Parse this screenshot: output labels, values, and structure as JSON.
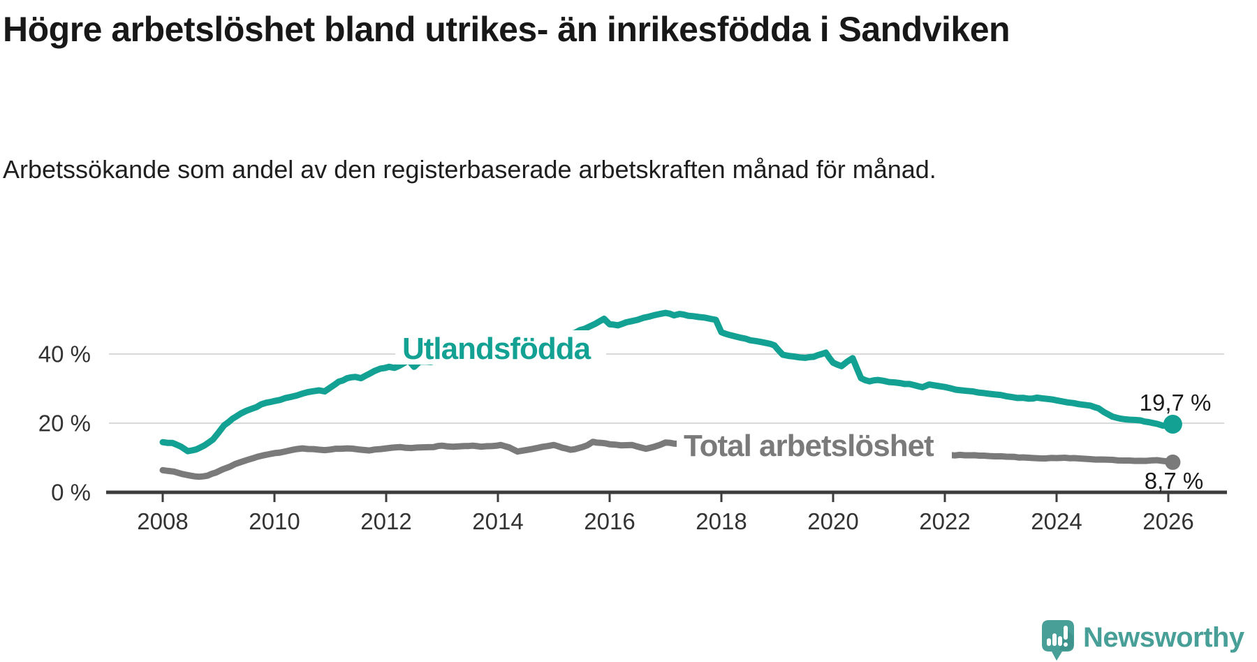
{
  "header": {
    "title": "Högre arbetslöshet bland utrikes- än inrikesfödda i Sandviken",
    "subtitle": "Arbetssökande som andel av den registerbaserade arbetskraften månad för månad."
  },
  "colors": {
    "background": "#ffffff",
    "title_text": "#181818",
    "accent_teal": "#12a192",
    "series_gray": "#7a7a7a",
    "axis_text": "#333333",
    "axis_line": "#3c3c3c",
    "gridline": "#d9d9d9",
    "value_label_text": "#1a1a1a",
    "logo_teal": "#479f97"
  },
  "logo": {
    "text": "Newsworthy",
    "icon": "newsworthy-speech-bubble-bar-chart-icon"
  },
  "chart_data": {
    "type": "line",
    "title": "Högre arbetslöshet bland utrikes- än inrikesfödda i Sandviken",
    "subtitle": "Arbetssökande som andel av den registerbaserade arbetskraften månad för månad.",
    "unit": "%",
    "grid": "horizontal",
    "gridline_values": [
      20,
      40
    ],
    "legend_position": "inline-line-labels",
    "x_ticks": [
      2008,
      2010,
      2012,
      2014,
      2016,
      2018,
      2020,
      2022,
      2024,
      2026
    ],
    "y_ticks": [
      {
        "value": 0,
        "label": "0 %"
      },
      {
        "value": 20,
        "label": "20 %"
      },
      {
        "value": 40,
        "label": "40 %"
      }
    ],
    "xlim": [
      2007.9,
      2026.3
    ],
    "ylim": [
      0,
      55
    ],
    "series": [
      {
        "name": "Utlandsfödda",
        "color": "#12a192",
        "end_value": 19.7,
        "end_label": "19,7 %",
        "points": [
          [
            2008.0,
            14.5
          ],
          [
            2008.17,
            14.3
          ],
          [
            2008.33,
            13.2
          ],
          [
            2008.45,
            11.9
          ],
          [
            2008.6,
            12.4
          ],
          [
            2008.75,
            13.6
          ],
          [
            2008.9,
            15.3
          ],
          [
            2009.0,
            17.3
          ],
          [
            2009.1,
            19.4
          ],
          [
            2009.25,
            21.3
          ],
          [
            2009.4,
            22.8
          ],
          [
            2009.6,
            24.2
          ],
          [
            2009.85,
            25.9
          ],
          [
            2010.0,
            26.4
          ],
          [
            2010.2,
            27.3
          ],
          [
            2010.4,
            28.0
          ],
          [
            2010.6,
            29.0
          ],
          [
            2010.8,
            29.5
          ],
          [
            2010.9,
            29.2
          ],
          [
            2011.0,
            30.3
          ],
          [
            2011.15,
            32.0
          ],
          [
            2011.3,
            33.0
          ],
          [
            2011.45,
            33.4
          ],
          [
            2011.55,
            33.0
          ],
          [
            2011.7,
            34.3
          ],
          [
            2011.9,
            35.8
          ],
          [
            2012.05,
            36.3
          ],
          [
            2012.15,
            36.0
          ],
          [
            2012.3,
            37.2
          ],
          [
            2012.4,
            38.2
          ],
          [
            2012.5,
            36.3
          ],
          [
            2012.6,
            37.8
          ],
          [
            2012.8,
            37.7
          ],
          [
            2013.0,
            38.4
          ],
          [
            2013.2,
            39.0
          ],
          [
            2013.5,
            40.1
          ],
          [
            2013.8,
            40.9
          ],
          [
            2014.1,
            41.8
          ],
          [
            2014.4,
            42.7
          ],
          [
            2014.7,
            43.5
          ],
          [
            2015.0,
            44.6
          ],
          [
            2015.3,
            45.8
          ],
          [
            2015.55,
            47.3
          ],
          [
            2015.75,
            48.8
          ],
          [
            2015.9,
            50.2
          ],
          [
            2016.0,
            48.6
          ],
          [
            2016.15,
            48.3
          ],
          [
            2016.3,
            49.2
          ],
          [
            2016.5,
            49.9
          ],
          [
            2016.7,
            50.8
          ],
          [
            2016.9,
            51.6
          ],
          [
            2017.0,
            51.9
          ],
          [
            2017.15,
            51.2
          ],
          [
            2017.25,
            51.6
          ],
          [
            2017.4,
            51.1
          ],
          [
            2017.6,
            50.7
          ],
          [
            2017.8,
            50.2
          ],
          [
            2017.9,
            49.9
          ],
          [
            2018.0,
            46.3
          ],
          [
            2018.15,
            45.5
          ],
          [
            2018.35,
            44.7
          ],
          [
            2018.6,
            43.8
          ],
          [
            2018.8,
            43.2
          ],
          [
            2018.95,
            42.5
          ],
          [
            2019.1,
            39.8
          ],
          [
            2019.3,
            39.3
          ],
          [
            2019.5,
            38.9
          ],
          [
            2019.65,
            39.2
          ],
          [
            2019.87,
            40.4
          ],
          [
            2020.0,
            37.5
          ],
          [
            2020.15,
            36.5
          ],
          [
            2020.35,
            38.8
          ],
          [
            2020.5,
            33.0
          ],
          [
            2020.65,
            32.1
          ],
          [
            2020.8,
            32.5
          ],
          [
            2021.0,
            31.9
          ],
          [
            2021.2,
            31.6
          ],
          [
            2021.45,
            31.0
          ],
          [
            2021.6,
            30.4
          ],
          [
            2021.72,
            31.2
          ],
          [
            2021.9,
            30.7
          ],
          [
            2022.1,
            30.1
          ],
          [
            2022.3,
            29.5
          ],
          [
            2022.5,
            29.2
          ],
          [
            2022.7,
            28.7
          ],
          [
            2022.9,
            28.3
          ],
          [
            2023.1,
            27.8
          ],
          [
            2023.3,
            27.3
          ],
          [
            2023.5,
            27.1
          ],
          [
            2023.65,
            27.4
          ],
          [
            2023.85,
            27.0
          ],
          [
            2024.0,
            26.6
          ],
          [
            2024.2,
            26.0
          ],
          [
            2024.4,
            25.5
          ],
          [
            2024.6,
            25.1
          ],
          [
            2024.75,
            24.3
          ],
          [
            2024.85,
            23.2
          ],
          [
            2025.0,
            21.9
          ],
          [
            2025.15,
            21.3
          ],
          [
            2025.3,
            21.0
          ],
          [
            2025.5,
            20.8
          ],
          [
            2025.65,
            20.3
          ],
          [
            2025.8,
            19.8
          ],
          [
            2025.9,
            19.3
          ],
          [
            2026.0,
            19.4
          ],
          [
            2026.08,
            19.7
          ]
        ]
      },
      {
        "name": "Total arbetslöshet",
        "color": "#7a7a7a",
        "end_value": 8.7,
        "end_label": "8,7 %",
        "points": [
          [
            2008.0,
            6.4
          ],
          [
            2008.2,
            6.0
          ],
          [
            2008.35,
            5.3
          ],
          [
            2008.5,
            4.8
          ],
          [
            2008.65,
            4.5
          ],
          [
            2008.8,
            4.8
          ],
          [
            2008.95,
            5.7
          ],
          [
            2009.1,
            6.8
          ],
          [
            2009.3,
            8.2
          ],
          [
            2009.5,
            9.3
          ],
          [
            2009.7,
            10.3
          ],
          [
            2009.9,
            11.0
          ],
          [
            2010.1,
            11.5
          ],
          [
            2010.3,
            12.2
          ],
          [
            2010.5,
            12.7
          ],
          [
            2010.7,
            12.5
          ],
          [
            2010.9,
            12.2
          ],
          [
            2011.1,
            12.6
          ],
          [
            2011.3,
            12.7
          ],
          [
            2011.5,
            12.4
          ],
          [
            2011.7,
            12.1
          ],
          [
            2011.9,
            12.5
          ],
          [
            2012.1,
            12.9
          ],
          [
            2012.25,
            13.1
          ],
          [
            2012.45,
            12.8
          ],
          [
            2012.65,
            13.0
          ],
          [
            2012.85,
            13.1
          ],
          [
            2013.0,
            13.5
          ],
          [
            2013.2,
            13.2
          ],
          [
            2013.4,
            13.4
          ],
          [
            2013.55,
            13.5
          ],
          [
            2013.7,
            13.2
          ],
          [
            2013.9,
            13.4
          ],
          [
            2014.05,
            13.7
          ],
          [
            2014.2,
            13.0
          ],
          [
            2014.35,
            11.8
          ],
          [
            2014.5,
            12.2
          ],
          [
            2014.7,
            12.8
          ],
          [
            2014.9,
            13.4
          ],
          [
            2015.0,
            13.7
          ],
          [
            2015.15,
            12.9
          ],
          [
            2015.3,
            12.3
          ],
          [
            2015.45,
            12.8
          ],
          [
            2015.6,
            13.6
          ],
          [
            2015.7,
            14.6
          ],
          [
            2015.85,
            14.3
          ],
          [
            2016.0,
            13.9
          ],
          [
            2016.2,
            13.6
          ],
          [
            2016.4,
            13.7
          ],
          [
            2016.55,
            13.0
          ],
          [
            2016.65,
            12.6
          ],
          [
            2016.8,
            13.2
          ],
          [
            2017.0,
            14.4
          ],
          [
            2017.15,
            14.1
          ],
          [
            2017.3,
            13.9
          ],
          [
            2017.45,
            14.1
          ],
          [
            2017.6,
            14.7
          ],
          [
            2017.7,
            15.0
          ],
          [
            2017.85,
            14.6
          ],
          [
            2018.0,
            14.2
          ],
          [
            2018.3,
            13.8
          ],
          [
            2018.6,
            13.4
          ],
          [
            2019.0,
            12.9
          ],
          [
            2019.5,
            12.3
          ],
          [
            2020.0,
            11.9
          ],
          [
            2020.5,
            11.6
          ],
          [
            2021.0,
            11.3
          ],
          [
            2021.5,
            11.0
          ],
          [
            2022.0,
            10.8
          ],
          [
            2022.45,
            10.7
          ],
          [
            2022.7,
            10.6
          ],
          [
            2022.9,
            10.4
          ],
          [
            2023.1,
            10.3
          ],
          [
            2023.4,
            10.1
          ],
          [
            2023.6,
            9.9
          ],
          [
            2023.8,
            9.8
          ],
          [
            2024.0,
            9.9
          ],
          [
            2024.15,
            10.0
          ],
          [
            2024.4,
            9.8
          ],
          [
            2024.6,
            9.6
          ],
          [
            2024.8,
            9.5
          ],
          [
            2025.0,
            9.4
          ],
          [
            2025.2,
            9.2
          ],
          [
            2025.4,
            9.1
          ],
          [
            2025.6,
            9.1
          ],
          [
            2025.8,
            9.3
          ],
          [
            2025.95,
            9.0
          ],
          [
            2026.08,
            8.7
          ]
        ]
      }
    ]
  }
}
